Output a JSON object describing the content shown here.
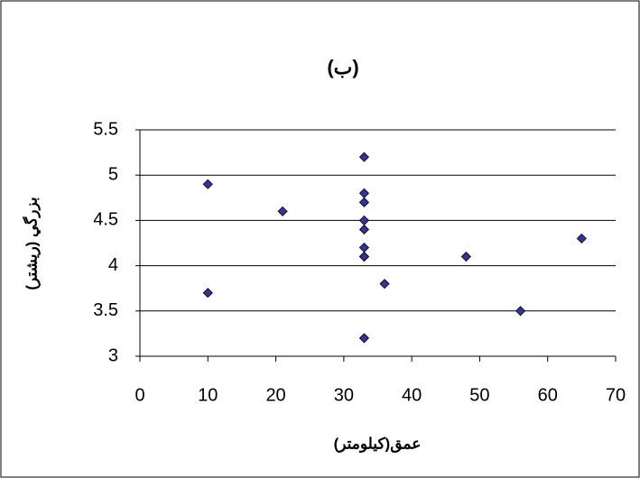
{
  "chart_data": {
    "type": "scatter",
    "title": "(ب)",
    "x_label": "عمق(كيلومتر)",
    "y_label": "بزرگي (ريشتر)",
    "series": [
      {
        "color": "#333399",
        "x": [
          10,
          10,
          21,
          33,
          33,
          33,
          33,
          33,
          33,
          33,
          33,
          33,
          36,
          48,
          56,
          65
        ],
        "values": [
          4.9,
          3.7,
          4.6,
          5.2,
          4.8,
          4.7,
          4.5,
          4.4,
          4.2,
          4.1,
          4.1,
          3.2,
          3.8,
          4.1,
          3.5,
          4.3
        ]
      }
    ],
    "xlim": [
      0,
      70
    ],
    "xticks": [
      0,
      10,
      20,
      30,
      40,
      50,
      60,
      70
    ],
    "ylim": [
      3,
      5.5
    ],
    "yticks": [
      3,
      3.5,
      4,
      4.5,
      5,
      5.5
    ],
    "grid": true
  }
}
